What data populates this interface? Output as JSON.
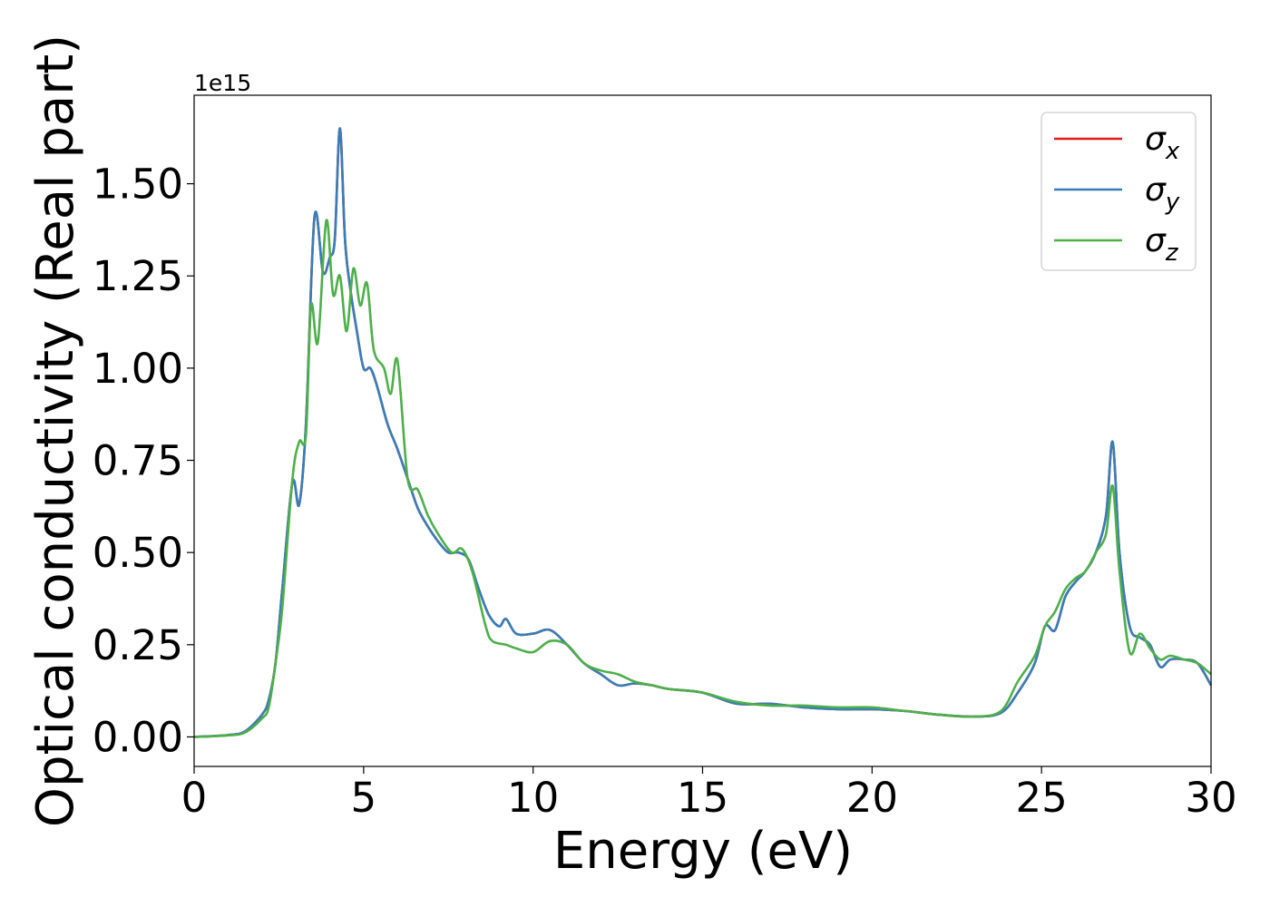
{
  "chart_data": {
    "type": "line",
    "title": "",
    "xlabel": "Energy (eV)",
    "ylabel": "Optical conductivity (Real part)",
    "offset_text": "1e15",
    "xlim": [
      0,
      30
    ],
    "ylim": [
      -0.08,
      1.74
    ],
    "xticks": [
      0,
      5,
      10,
      15,
      20,
      25,
      30
    ],
    "xtick_labels": [
      "0",
      "5",
      "10",
      "15",
      "20",
      "25",
      "30"
    ],
    "yticks": [
      0,
      0.25,
      0.5,
      0.75,
      1.0,
      1.25,
      1.5
    ],
    "ytick_labels": [
      "0.00",
      "0.25",
      "0.50",
      "0.75",
      "1.00",
      "1.25",
      "1.50"
    ],
    "legend_position": "top-right",
    "grid": false,
    "series": [
      {
        "name": "σ_x",
        "label_main": "σ",
        "label_sub": "x",
        "color": "#e41a1c",
        "points": [
          [
            0,
            0
          ],
          [
            1,
            0.005
          ],
          [
            1.5,
            0.015
          ],
          [
            2,
            0.06
          ],
          [
            2.2,
            0.1
          ],
          [
            2.4,
            0.2
          ],
          [
            2.6,
            0.4
          ],
          [
            2.9,
            0.69
          ],
          [
            3.1,
            0.63
          ],
          [
            3.3,
            0.85
          ],
          [
            3.55,
            1.41
          ],
          [
            3.8,
            1.26
          ],
          [
            4.0,
            1.3
          ],
          [
            4.15,
            1.35
          ],
          [
            4.3,
            1.65
          ],
          [
            4.45,
            1.35
          ],
          [
            4.6,
            1.22
          ],
          [
            4.8,
            1.1
          ],
          [
            5.0,
            1.0
          ],
          [
            5.2,
            1.0
          ],
          [
            5.4,
            0.95
          ],
          [
            5.7,
            0.85
          ],
          [
            6.0,
            0.78
          ],
          [
            6.3,
            0.7
          ],
          [
            6.6,
            0.62
          ],
          [
            6.9,
            0.57
          ],
          [
            7.2,
            0.53
          ],
          [
            7.5,
            0.5
          ],
          [
            7.8,
            0.5
          ],
          [
            8.1,
            0.48
          ],
          [
            8.4,
            0.4
          ],
          [
            8.7,
            0.33
          ],
          [
            9.0,
            0.3
          ],
          [
            9.2,
            0.32
          ],
          [
            9.5,
            0.28
          ],
          [
            10.0,
            0.28
          ],
          [
            10.5,
            0.29
          ],
          [
            11.0,
            0.25
          ],
          [
            11.5,
            0.2
          ],
          [
            12.0,
            0.17
          ],
          [
            12.5,
            0.14
          ],
          [
            13.0,
            0.145
          ],
          [
            13.5,
            0.14
          ],
          [
            14.0,
            0.13
          ],
          [
            15.0,
            0.12
          ],
          [
            16.0,
            0.09
          ],
          [
            17.0,
            0.09
          ],
          [
            18.0,
            0.08
          ],
          [
            19.0,
            0.075
          ],
          [
            20.0,
            0.075
          ],
          [
            21.0,
            0.07
          ],
          [
            22.0,
            0.06
          ],
          [
            23.0,
            0.055
          ],
          [
            23.8,
            0.065
          ],
          [
            24.3,
            0.12
          ],
          [
            24.8,
            0.2
          ],
          [
            25.1,
            0.3
          ],
          [
            25.4,
            0.29
          ],
          [
            25.7,
            0.38
          ],
          [
            26.0,
            0.42
          ],
          [
            26.3,
            0.45
          ],
          [
            26.6,
            0.5
          ],
          [
            26.9,
            0.6
          ],
          [
            27.1,
            0.8
          ],
          [
            27.3,
            0.5
          ],
          [
            27.6,
            0.3
          ],
          [
            27.9,
            0.27
          ],
          [
            28.2,
            0.25
          ],
          [
            28.5,
            0.19
          ],
          [
            28.8,
            0.21
          ],
          [
            29.2,
            0.21
          ],
          [
            29.6,
            0.2
          ],
          [
            30.0,
            0.14
          ]
        ]
      },
      {
        "name": "σ_y",
        "label_main": "σ",
        "label_sub": "y",
        "color": "#377eb8",
        "points": [
          [
            0,
            0
          ],
          [
            1,
            0.005
          ],
          [
            1.5,
            0.015
          ],
          [
            2,
            0.06
          ],
          [
            2.2,
            0.1
          ],
          [
            2.4,
            0.2
          ],
          [
            2.6,
            0.4
          ],
          [
            2.9,
            0.69
          ],
          [
            3.1,
            0.63
          ],
          [
            3.3,
            0.85
          ],
          [
            3.55,
            1.41
          ],
          [
            3.8,
            1.26
          ],
          [
            4.0,
            1.3
          ],
          [
            4.15,
            1.35
          ],
          [
            4.3,
            1.65
          ],
          [
            4.45,
            1.35
          ],
          [
            4.6,
            1.22
          ],
          [
            4.8,
            1.1
          ],
          [
            5.0,
            1.0
          ],
          [
            5.2,
            1.0
          ],
          [
            5.4,
            0.95
          ],
          [
            5.7,
            0.85
          ],
          [
            6.0,
            0.78
          ],
          [
            6.3,
            0.7
          ],
          [
            6.6,
            0.62
          ],
          [
            6.9,
            0.57
          ],
          [
            7.2,
            0.53
          ],
          [
            7.5,
            0.5
          ],
          [
            7.8,
            0.5
          ],
          [
            8.1,
            0.48
          ],
          [
            8.4,
            0.4
          ],
          [
            8.7,
            0.33
          ],
          [
            9.0,
            0.3
          ],
          [
            9.2,
            0.32
          ],
          [
            9.5,
            0.28
          ],
          [
            10.0,
            0.28
          ],
          [
            10.5,
            0.29
          ],
          [
            11.0,
            0.25
          ],
          [
            11.5,
            0.2
          ],
          [
            12.0,
            0.17
          ],
          [
            12.5,
            0.14
          ],
          [
            13.0,
            0.145
          ],
          [
            13.5,
            0.14
          ],
          [
            14.0,
            0.13
          ],
          [
            15.0,
            0.12
          ],
          [
            16.0,
            0.09
          ],
          [
            17.0,
            0.09
          ],
          [
            18.0,
            0.08
          ],
          [
            19.0,
            0.075
          ],
          [
            20.0,
            0.075
          ],
          [
            21.0,
            0.07
          ],
          [
            22.0,
            0.06
          ],
          [
            23.0,
            0.055
          ],
          [
            23.8,
            0.065
          ],
          [
            24.3,
            0.12
          ],
          [
            24.8,
            0.2
          ],
          [
            25.1,
            0.3
          ],
          [
            25.4,
            0.29
          ],
          [
            25.7,
            0.38
          ],
          [
            26.0,
            0.42
          ],
          [
            26.3,
            0.45
          ],
          [
            26.6,
            0.5
          ],
          [
            26.9,
            0.6
          ],
          [
            27.1,
            0.8
          ],
          [
            27.3,
            0.5
          ],
          [
            27.6,
            0.3
          ],
          [
            27.9,
            0.27
          ],
          [
            28.2,
            0.25
          ],
          [
            28.5,
            0.19
          ],
          [
            28.8,
            0.21
          ],
          [
            29.2,
            0.21
          ],
          [
            29.6,
            0.2
          ],
          [
            30.0,
            0.14
          ]
        ]
      },
      {
        "name": "σ_z",
        "label_main": "σ",
        "label_sub": "z",
        "color": "#4daf4a",
        "points": [
          [
            0,
            0
          ],
          [
            1,
            0.004
          ],
          [
            1.5,
            0.012
          ],
          [
            2,
            0.05
          ],
          [
            2.2,
            0.08
          ],
          [
            2.4,
            0.2
          ],
          [
            2.6,
            0.35
          ],
          [
            2.9,
            0.7
          ],
          [
            3.1,
            0.8
          ],
          [
            3.3,
            0.82
          ],
          [
            3.45,
            1.17
          ],
          [
            3.65,
            1.07
          ],
          [
            3.9,
            1.4
          ],
          [
            4.1,
            1.2
          ],
          [
            4.3,
            1.25
          ],
          [
            4.5,
            1.1
          ],
          [
            4.7,
            1.27
          ],
          [
            4.9,
            1.17
          ],
          [
            5.1,
            1.23
          ],
          [
            5.3,
            1.05
          ],
          [
            5.6,
            1.0
          ],
          [
            5.8,
            0.93
          ],
          [
            6.0,
            1.02
          ],
          [
            6.3,
            0.7
          ],
          [
            6.6,
            0.67
          ],
          [
            6.9,
            0.6
          ],
          [
            7.2,
            0.55
          ],
          [
            7.6,
            0.5
          ],
          [
            7.9,
            0.51
          ],
          [
            8.2,
            0.45
          ],
          [
            8.6,
            0.3
          ],
          [
            8.8,
            0.26
          ],
          [
            9.2,
            0.25
          ],
          [
            9.5,
            0.24
          ],
          [
            10.0,
            0.23
          ],
          [
            10.5,
            0.26
          ],
          [
            11.0,
            0.25
          ],
          [
            11.5,
            0.2
          ],
          [
            12.0,
            0.18
          ],
          [
            12.5,
            0.17
          ],
          [
            13.0,
            0.15
          ],
          [
            13.5,
            0.14
          ],
          [
            14.0,
            0.13
          ],
          [
            15.0,
            0.12
          ],
          [
            16.0,
            0.095
          ],
          [
            17.0,
            0.085
          ],
          [
            18.0,
            0.085
          ],
          [
            19.0,
            0.08
          ],
          [
            20.0,
            0.08
          ],
          [
            21.0,
            0.07
          ],
          [
            22.0,
            0.06
          ],
          [
            23.0,
            0.055
          ],
          [
            23.8,
            0.07
          ],
          [
            24.3,
            0.15
          ],
          [
            24.8,
            0.22
          ],
          [
            25.1,
            0.3
          ],
          [
            25.4,
            0.34
          ],
          [
            25.7,
            0.4
          ],
          [
            26.0,
            0.43
          ],
          [
            26.3,
            0.45
          ],
          [
            26.6,
            0.5
          ],
          [
            26.9,
            0.55
          ],
          [
            27.1,
            0.68
          ],
          [
            27.3,
            0.45
          ],
          [
            27.6,
            0.23
          ],
          [
            27.9,
            0.28
          ],
          [
            28.2,
            0.24
          ],
          [
            28.5,
            0.21
          ],
          [
            28.8,
            0.22
          ],
          [
            29.2,
            0.21
          ],
          [
            29.6,
            0.2
          ],
          [
            30.0,
            0.17
          ]
        ]
      }
    ]
  }
}
